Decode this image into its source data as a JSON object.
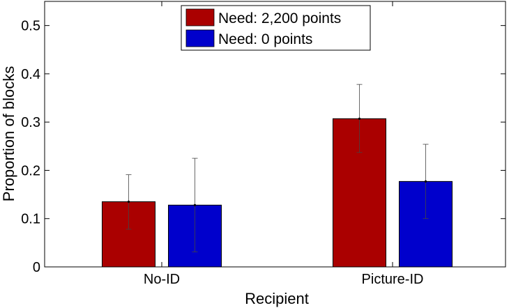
{
  "chart_data": {
    "type": "bar",
    "title": "",
    "xlabel": "Recipient",
    "ylabel": "Proportion of blocks",
    "categories": [
      "No-ID",
      "Picture-ID"
    ],
    "ylim": [
      0,
      0.55
    ],
    "yticks": [
      0,
      0.1,
      0.2,
      0.3,
      0.4,
      0.5
    ],
    "ytick_labels": [
      "0",
      "0.1",
      "0.2",
      "0.3",
      "0.4",
      "0.5"
    ],
    "grid": false,
    "legend_position": "top-center",
    "series": [
      {
        "name": "Need: 2,200 points",
        "color": "#aa0000",
        "values": [
          0.135,
          0.307
        ],
        "error_low": [
          0.078,
          0.237
        ],
        "error_high": [
          0.191,
          0.378
        ]
      },
      {
        "name": "Need: 0 points",
        "color": "#0000cc",
        "values": [
          0.128,
          0.177
        ],
        "error_low": [
          0.031,
          0.1
        ],
        "error_high": [
          0.225,
          0.254
        ]
      }
    ]
  }
}
